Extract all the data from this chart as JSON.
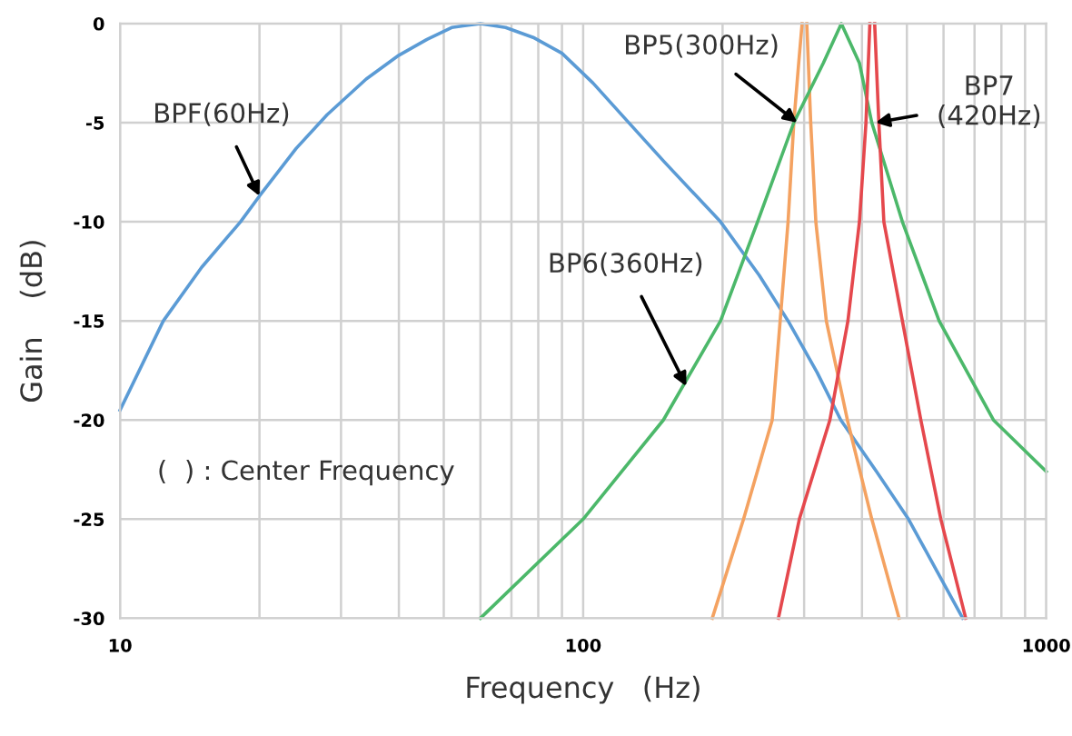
{
  "chart_data": {
    "type": "line",
    "xlabel": "Frequency   (Hz)",
    "ylabel": "Gain    (dB)",
    "log": "x",
    "grid": true,
    "marker": "none",
    "line_style": "solid",
    "xlim": [
      10,
      1000
    ],
    "ylim": [
      -30,
      0
    ],
    "xticks": [
      10,
      {
        "value": 20,
        "label": null
      },
      {
        "value": 30,
        "label": null
      },
      {
        "value": 40,
        "label": null
      },
      {
        "value": 50,
        "label": null
      },
      {
        "value": 60,
        "label": null
      },
      {
        "value": 70,
        "label": null
      },
      {
        "value": 80,
        "label": null
      },
      {
        "value": 90,
        "label": null
      },
      100,
      {
        "value": 200,
        "label": null
      },
      {
        "value": 300,
        "label": null
      },
      {
        "value": 400,
        "label": null
      },
      {
        "value": 500,
        "label": null
      },
      {
        "value": 600,
        "label": null
      },
      {
        "value": 700,
        "label": null
      },
      {
        "value": 800,
        "label": null
      },
      {
        "value": 900,
        "label": null
      },
      1000
    ],
    "yticks": [
      -30,
      -25,
      -20,
      -15,
      -10,
      -5,
      0
    ],
    "series": [
      {
        "color": "#5b9bd5",
        "x": [
          10,
          12.4,
          15,
          18.2,
          20,
          24,
          28,
          34,
          40,
          46,
          52,
          60,
          68,
          78,
          90,
          105,
          120,
          150,
          198,
          240,
          277,
          320,
          360,
          430,
          504,
          580,
          660
        ],
        "values": [
          -19.5,
          -15,
          -12.3,
          -10,
          -8.7,
          -6.3,
          -4.6,
          -2.8,
          -1.6,
          -0.8,
          -0.2,
          0,
          -0.2,
          -0.7,
          -1.5,
          -3,
          -4.5,
          -7,
          -10,
          -12.7,
          -15,
          -17.6,
          -20,
          -22.6,
          -25,
          -27.6,
          -30
        ]
      },
      {
        "color": "#f4a261",
        "x": [
          190,
          222,
          256,
          277,
          285,
          292,
          297,
          null,
          304,
          310,
          318,
          335,
          372,
          420,
          481
        ],
        "values": [
          -30,
          -25,
          -20,
          -10,
          -5,
          -2,
          0,
          null,
          0,
          -5,
          -10,
          -15,
          -20,
          -25,
          -30
        ]
      },
      {
        "color": "#4cb86a",
        "x": [
          60,
          100,
          149,
          198,
          238,
          285,
          330,
          361,
          395,
          420,
          489,
          587,
          769,
          1000
        ],
        "values": [
          -30,
          -25,
          -20,
          -15,
          -10,
          -5,
          -2,
          0,
          -2,
          -5,
          -10,
          -15,
          -20,
          -22.6
        ]
      },
      {
        "color": "#e5484d",
        "x": [
          264,
          293,
          341,
          373,
          395,
          408,
          416,
          null,
          426,
          435,
          446,
          489,
          536,
          592,
          670
        ],
        "values": [
          -30,
          -25,
          -20,
          -15,
          -10,
          -5,
          0,
          null,
          0,
          -5,
          -10,
          -15,
          -20,
          -25,
          -30
        ]
      }
    ],
    "annotations": [
      {
        "text": "BPF(60Hz)",
        "x": 20,
        "y": -8.7
      },
      {
        "text": "BP5(300Hz)",
        "x": 290,
        "y": -5
      },
      {
        "text": "BP7\n(420Hz)",
        "x": 428,
        "y": -5
      },
      {
        "text": "BP6(360Hz)",
        "x": 167,
        "y": -18.3
      },
      "(  ) : Center Frequency"
    ]
  }
}
